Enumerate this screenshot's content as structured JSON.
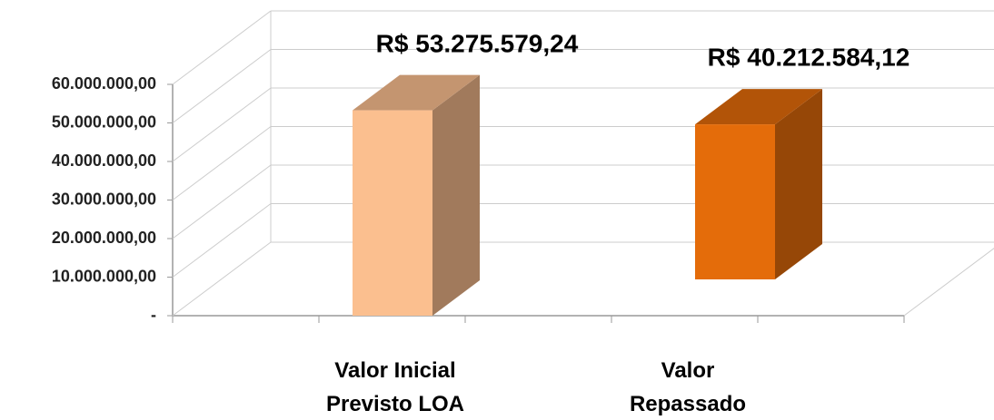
{
  "chart_data": {
    "type": "bar3d",
    "categories": [
      "Valor Inicial Previsto LOA",
      "Valor Repassado"
    ],
    "values": [
      53275579.24,
      40212584.12
    ],
    "value_labels": [
      "R$ 53.275.579,24",
      "R$ 40.212.584,12"
    ],
    "colors": [
      "#fbbf8f",
      "#e46c0a"
    ],
    "ylim": [
      0,
      60000000
    ],
    "yticks": [
      {
        "value": 0,
        "label": "-"
      },
      {
        "value": 10000000,
        "label": "10.000.000,00"
      },
      {
        "value": 20000000,
        "label": "20.000.000,00"
      },
      {
        "value": 30000000,
        "label": "30.000.000,00"
      },
      {
        "value": 40000000,
        "label": "40.000.000,00"
      },
      {
        "value": 50000000,
        "label": "50.000.000,00"
      },
      {
        "value": 60000000,
        "label": "60.000.000,00"
      }
    ],
    "grid": true
  }
}
